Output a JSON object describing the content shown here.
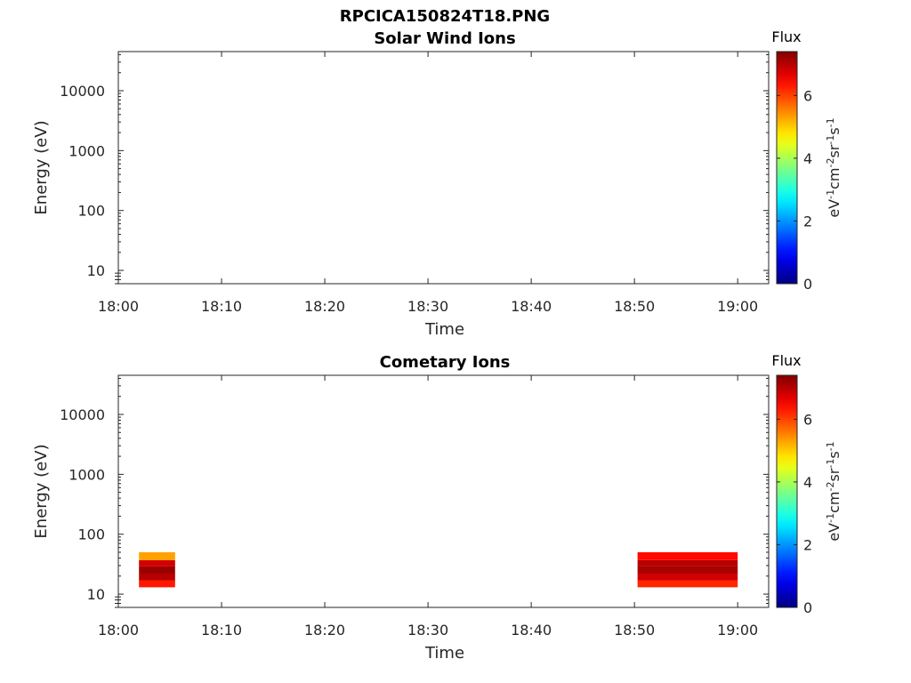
{
  "figure_title": "RPCICA150824T18.PNG",
  "colorbar": {
    "title": "Flux",
    "label": "eV⁻¹cm⁻²sr⁻¹s⁻¹",
    "label_parts": [
      "eV",
      "-1",
      "cm",
      "-2",
      "sr",
      "-1",
      "s",
      "-1"
    ],
    "range": [
      0,
      7.4
    ],
    "ticks": [
      "0",
      "2",
      "4",
      "6"
    ],
    "colormap": "jet"
  },
  "chart_data": [
    {
      "type": "heatmap",
      "title": "Solar Wind Ions",
      "xlabel": "Time",
      "ylabel": "Energy (eV)",
      "xlim": [
        "18:00",
        "19:03"
      ],
      "ylim": [
        6,
        45000
      ],
      "yscale": "log",
      "xticks": [
        "18:00",
        "18:10",
        "18:20",
        "18:30",
        "18:40",
        "18:50",
        "19:00"
      ],
      "yticks": [
        "10",
        "100",
        "1000",
        "10000"
      ],
      "blocks": []
    },
    {
      "type": "heatmap",
      "title": "Cometary Ions",
      "xlabel": "Time",
      "ylabel": "Energy (eV)",
      "xlim": [
        "18:00",
        "19:03"
      ],
      "ylim": [
        6,
        45000
      ],
      "yscale": "log",
      "xticks": [
        "18:00",
        "18:10",
        "18:20",
        "18:30",
        "18:40",
        "18:50",
        "19:00"
      ],
      "yticks": [
        "10",
        "100",
        "1000",
        "10000"
      ],
      "blocks": [
        {
          "t_start": "18:02",
          "t_end": "18:05.5",
          "energy_bins": [
            {
              "e_low": 13,
              "e_high": 17,
              "flux": 6.3
            },
            {
              "e_low": 17,
              "e_high": 22,
              "flux": 7.0
            },
            {
              "e_low": 22,
              "e_high": 29,
              "flux": 7.2
            },
            {
              "e_low": 29,
              "e_high": 37,
              "flux": 6.8
            },
            {
              "e_low": 37,
              "e_high": 50,
              "flux": 5.3
            }
          ]
        },
        {
          "t_start": "18:50.3",
          "t_end": "19:00",
          "energy_bins": [
            {
              "e_low": 13,
              "e_high": 17,
              "flux": 6.2
            },
            {
              "e_low": 17,
              "e_high": 22,
              "flux": 6.8
            },
            {
              "e_low": 22,
              "e_high": 29,
              "flux": 7.1
            },
            {
              "e_low": 29,
              "e_high": 37,
              "flux": 7.0
            },
            {
              "e_low": 37,
              "e_high": 50,
              "flux": 6.4
            }
          ]
        }
      ]
    }
  ]
}
